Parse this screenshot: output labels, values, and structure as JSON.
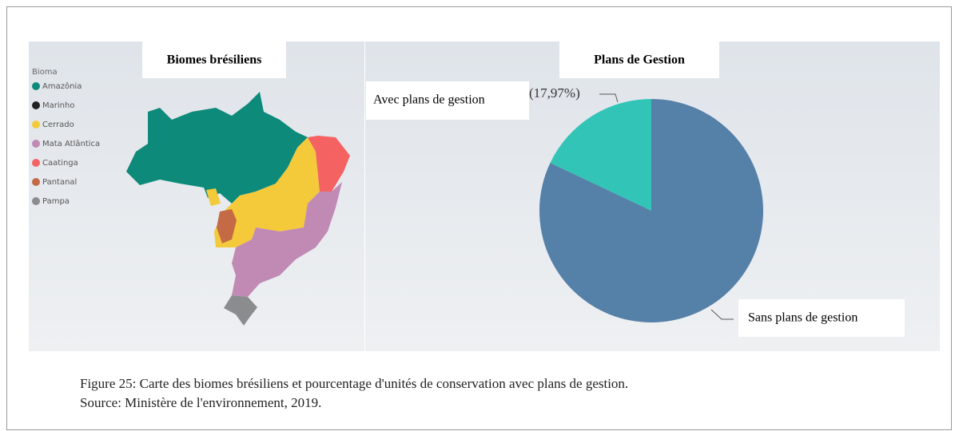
{
  "map": {
    "title": "Biomes brésiliens",
    "legend_title": "Bioma",
    "legend": [
      {
        "label": "Amazônia",
        "color": "#0e8a7a"
      },
      {
        "label": "Marinho",
        "color": "#222222"
      },
      {
        "label": "Cerrado",
        "color": "#f4c93a"
      },
      {
        "label": "Mata Atlântica",
        "color": "#c08ab5"
      },
      {
        "label": "Caatinga",
        "color": "#f46262"
      },
      {
        "label": "Pantanal",
        "color": "#c46a45"
      },
      {
        "label": "Pampa",
        "color": "#8a8c8e"
      }
    ]
  },
  "chart_data": {
    "type": "pie",
    "title": "Plans de Gestion",
    "categories": [
      "Avec plans de gestion",
      "Sans plans de gestion"
    ],
    "values": [
      17.97,
      82.03
    ],
    "value_labels": [
      "(17,97%)",
      null
    ],
    "colors": [
      "#33c4b8",
      "#5580a8"
    ]
  },
  "caption": [
    "Figure 25: Carte des biomes brésiliens et pourcentage d'unités de conservation avec plans de gestion.",
    "Source: Ministère de l'environnement, 2019."
  ]
}
